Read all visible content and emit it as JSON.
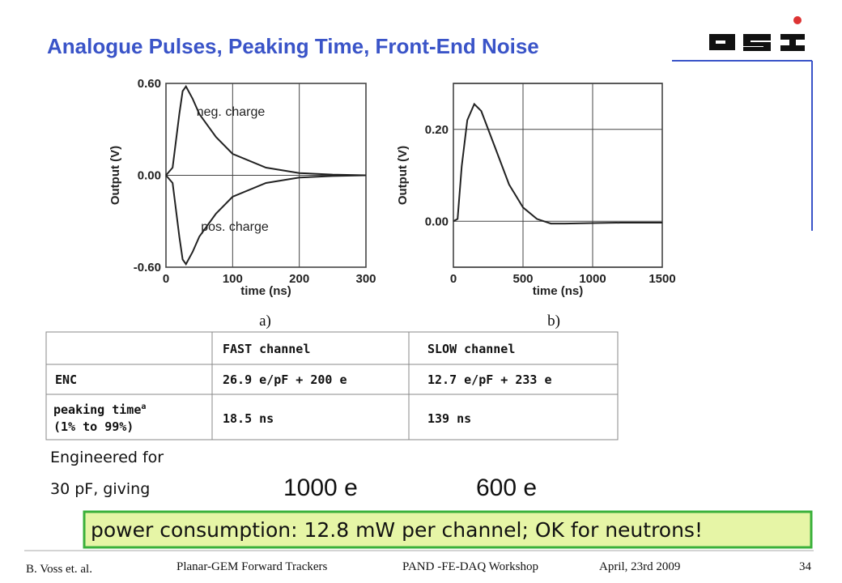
{
  "header": {
    "title": "Analogue Pulses, Peaking Time, Front-End Noise"
  },
  "chart_data": [
    {
      "type": "line",
      "caption": "a)",
      "xlabel": "time (ns)",
      "ylabel": "Output (V)",
      "x": [
        0,
        10,
        20,
        25,
        30,
        40,
        50,
        75,
        100,
        150,
        200,
        250,
        300
      ],
      "series": [
        {
          "name": "neg. charge",
          "color": "#222222",
          "values": [
            0,
            0.05,
            0.4,
            0.55,
            0.58,
            0.5,
            0.4,
            0.25,
            0.14,
            0.05,
            0.015,
            0.005,
            0
          ]
        },
        {
          "name": "pos. charge",
          "color": "#222222",
          "values": [
            0,
            -0.05,
            -0.4,
            -0.55,
            -0.58,
            -0.5,
            -0.4,
            -0.25,
            -0.14,
            -0.05,
            -0.015,
            -0.005,
            0
          ]
        }
      ],
      "xlim": [
        0,
        300
      ],
      "ylim": [
        -0.6,
        0.6
      ],
      "xticks": [
        0,
        100,
        200,
        300
      ],
      "yticks": [
        {
          "value": -0.6,
          "label": "-0.60"
        },
        {
          "value": 0,
          "label": "0.00"
        },
        {
          "value": 0.6,
          "label": "0.60"
        }
      ],
      "grid": true
    },
    {
      "type": "line",
      "caption": "b)",
      "xlabel": "time (ns)",
      "ylabel": "Output (V)",
      "x": [
        0,
        30,
        60,
        100,
        150,
        200,
        300,
        400,
        500,
        600,
        700,
        800,
        1000,
        1200,
        1500
      ],
      "series": [
        {
          "color": "#222222",
          "values": [
            0,
            0.005,
            0.12,
            0.22,
            0.255,
            0.24,
            0.16,
            0.08,
            0.03,
            0.005,
            -0.005,
            -0.005,
            -0.004,
            -0.003,
            -0.003
          ]
        }
      ],
      "xlim": [
        0,
        1500
      ],
      "ylim": [
        -0.1,
        0.3
      ],
      "xticks": [
        0,
        500,
        1000,
        1500
      ],
      "yticks": [
        {
          "value": 0,
          "label": "0.00"
        },
        {
          "value": 0.2,
          "label": "0.20"
        }
      ],
      "grid": true
    }
  ],
  "table": {
    "header": [
      "FAST channel",
      "SLOW channel"
    ],
    "rows": [
      {
        "label": "ENC",
        "cells": [
          "26.9 e/pF + 200 e",
          "12.7 e/pF + 233 e"
        ]
      },
      {
        "label": "peaking time",
        "note": "a",
        "sub": "(1% to 99%)",
        "cells": [
          "18.5 ns",
          "139 ns"
        ]
      }
    ]
  },
  "notes": {
    "line1": "Engineered for",
    "line2": "30 pF, giving",
    "fast": "1000 e",
    "slow": "600 e"
  },
  "banner": "power consumption: 12.8 mW per channel; OK for neutrons!",
  "footer": {
    "author": "B. Voss et. al.",
    "project": "Planar-GEM Forward Trackers",
    "event": "PAND -FE-DAQ Workshop",
    "date": "April, 23rd 2009",
    "page": "34"
  }
}
